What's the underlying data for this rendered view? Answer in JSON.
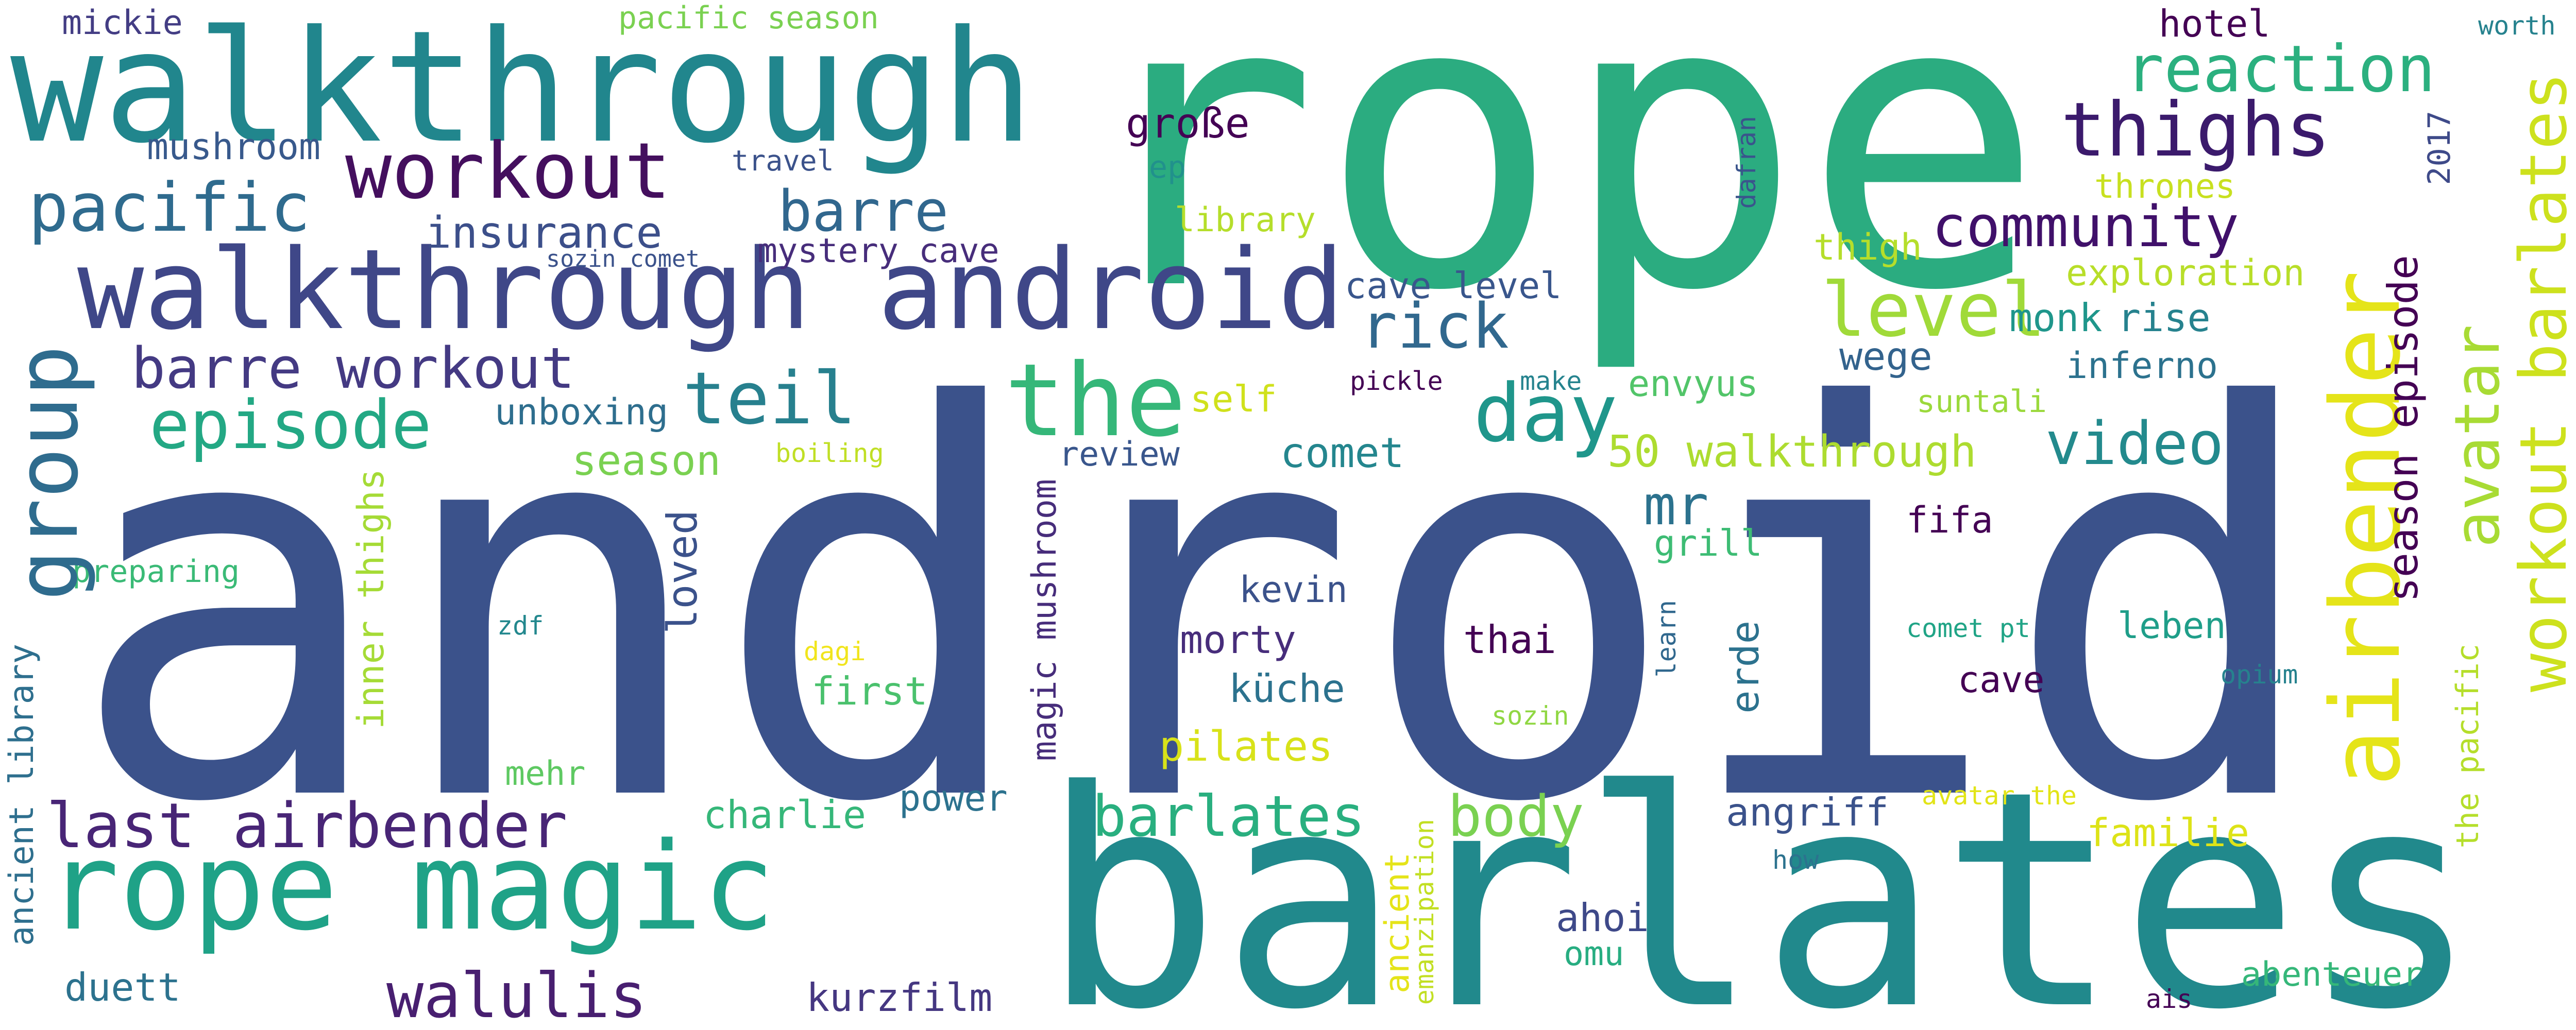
{
  "words": [
    {
      "text": "android",
      "color": "#3b528b",
      "orientation": "horizontal"
    },
    {
      "text": "rope",
      "color": "#2bac80",
      "orientation": "horizontal"
    },
    {
      "text": "barlates",
      "color": "#21898c",
      "orientation": "horizontal"
    },
    {
      "text": "walkthrough",
      "color": "#21868d",
      "orientation": "horizontal"
    },
    {
      "text": "walkthrough android",
      "color": "#3f4788",
      "orientation": "horizontal"
    },
    {
      "text": "rope magic",
      "color": "#1fa287",
      "orientation": "horizontal"
    },
    {
      "text": "workout",
      "color": "#440f5e",
      "orientation": "horizontal"
    },
    {
      "text": "pacific",
      "color": "#2f6b8e",
      "orientation": "horizontal"
    },
    {
      "text": "reaction",
      "color": "#2bb07f",
      "orientation": "horizontal"
    },
    {
      "text": "thighs",
      "color": "#3b1a6c",
      "orientation": "horizontal"
    },
    {
      "text": "community",
      "color": "#40106a",
      "orientation": "horizontal"
    },
    {
      "text": "the",
      "color": "#35b779",
      "orientation": "horizontal"
    },
    {
      "text": "level",
      "color": "#a0da39",
      "orientation": "horizontal"
    },
    {
      "text": "rick",
      "color": "#31688e",
      "orientation": "horizontal"
    },
    {
      "text": "day",
      "color": "#1f968b",
      "orientation": "horizontal"
    },
    {
      "text": "teil",
      "color": "#27808e",
      "orientation": "horizontal"
    },
    {
      "text": "episode",
      "color": "#23a884",
      "orientation": "horizontal"
    },
    {
      "text": "barre workout",
      "color": "#443a83",
      "orientation": "horizontal"
    },
    {
      "text": "barre",
      "color": "#31678e",
      "orientation": "horizontal"
    },
    {
      "text": "insurance",
      "color": "#3c4f8a",
      "orientation": "horizontal"
    },
    {
      "text": "mystery cave",
      "color": "#472d7b",
      "orientation": "horizontal"
    },
    {
      "text": "sozin comet",
      "color": "#3b528b",
      "orientation": "horizontal"
    },
    {
      "text": "mushroom",
      "color": "#38598c",
      "orientation": "horizontal"
    },
    {
      "text": "mickie",
      "color": "#433d84",
      "orientation": "horizontal"
    },
    {
      "text": "pacific season",
      "color": "#7ad151",
      "orientation": "horizontal"
    },
    {
      "text": "travel",
      "color": "#3b528b",
      "orientation": "horizontal"
    },
    {
      "text": "große",
      "color": "#440154",
      "orientation": "horizontal"
    },
    {
      "text": "ep",
      "color": "#21918c",
      "orientation": "horizontal"
    },
    {
      "text": "library",
      "color": "#b5de2b",
      "orientation": "horizontal"
    },
    {
      "text": "cave level",
      "color": "#39568c",
      "orientation": "horizontal"
    },
    {
      "text": "hotel",
      "color": "#440154",
      "orientation": "horizontal"
    },
    {
      "text": "worth",
      "color": "#26828e",
      "orientation": "horizontal"
    },
    {
      "text": "thrones",
      "color": "#c8e020",
      "orientation": "horizontal"
    },
    {
      "text": "thigh",
      "color": "#b5de2b",
      "orientation": "horizontal"
    },
    {
      "text": "exploration",
      "color": "#b8de29",
      "orientation": "horizontal"
    },
    {
      "text": "monk",
      "color": "#1f968b",
      "orientation": "horizontal"
    },
    {
      "text": "rise",
      "color": "#26828e",
      "orientation": "horizontal"
    },
    {
      "text": "inferno",
      "color": "#2c728e",
      "orientation": "horizontal"
    },
    {
      "text": "wege",
      "color": "#33638d",
      "orientation": "horizontal"
    },
    {
      "text": "suntali",
      "color": "#9bd93c",
      "orientation": "horizontal"
    },
    {
      "text": "envyus",
      "color": "#52c569",
      "orientation": "horizontal"
    },
    {
      "text": "video",
      "color": "#238a8d",
      "orientation": "horizontal"
    },
    {
      "text": "50 walkthrough",
      "color": "#addc30",
      "orientation": "horizontal"
    },
    {
      "text": "self",
      "color": "#d0e11c",
      "orientation": "horizontal"
    },
    {
      "text": "make",
      "color": "#25838e",
      "orientation": "horizontal"
    },
    {
      "text": "pickle",
      "color": "#440154",
      "orientation": "horizontal"
    },
    {
      "text": "review",
      "color": "#39568c",
      "orientation": "horizontal"
    },
    {
      "text": "comet",
      "color": "#24868e",
      "orientation": "horizontal"
    },
    {
      "text": "mr",
      "color": "#2c728e",
      "orientation": "horizontal"
    },
    {
      "text": "grill",
      "color": "#3dbc74",
      "orientation": "horizontal"
    },
    {
      "text": "fifa",
      "color": "#440154",
      "orientation": "horizontal"
    },
    {
      "text": "unboxing",
      "color": "#2e6e8e",
      "orientation": "horizontal"
    },
    {
      "text": "boiling",
      "color": "#c0df25",
      "orientation": "horizontal"
    },
    {
      "text": "season",
      "color": "#7ad151",
      "orientation": "horizontal"
    },
    {
      "text": "preparing",
      "color": "#3aba76",
      "orientation": "horizontal"
    },
    {
      "text": "kevin",
      "color": "#3b528b",
      "orientation": "horizontal"
    },
    {
      "text": "morty",
      "color": "#472d7b",
      "orientation": "horizontal"
    },
    {
      "text": "thai",
      "color": "#440154",
      "orientation": "horizontal"
    },
    {
      "text": "küche",
      "color": "#2c728e",
      "orientation": "horizontal"
    },
    {
      "text": "zdf",
      "color": "#23888e",
      "orientation": "horizontal"
    },
    {
      "text": "dagi",
      "color": "#f1e51d",
      "orientation": "horizontal"
    },
    {
      "text": "first",
      "color": "#4ac16d",
      "orientation": "horizontal"
    },
    {
      "text": "mehr",
      "color": "#5ec962",
      "orientation": "horizontal"
    },
    {
      "text": "pilates",
      "color": "#d8e219",
      "orientation": "horizontal"
    },
    {
      "text": "comet pt",
      "color": "#20a486",
      "orientation": "horizontal"
    },
    {
      "text": "leben",
      "color": "#1f9e89",
      "orientation": "horizontal"
    },
    {
      "text": "cave",
      "color": "#440154",
      "orientation": "horizontal"
    },
    {
      "text": "opium",
      "color": "#26828e",
      "orientation": "horizontal"
    },
    {
      "text": "sozin",
      "color": "#90d743",
      "orientation": "horizontal"
    },
    {
      "text": "last airbender",
      "color": "#482576",
      "orientation": "horizontal"
    },
    {
      "text": "charlie",
      "color": "#35b779",
      "orientation": "horizontal"
    },
    {
      "text": "power",
      "color": "#2c728e",
      "orientation": "horizontal"
    },
    {
      "text": "barlates",
      "color": "#29af7f",
      "orientation": "horizontal"
    },
    {
      "text": "body",
      "color": "#7ad151",
      "orientation": "horizontal"
    },
    {
      "text": "angriff",
      "color": "#3b528b",
      "orientation": "horizontal"
    },
    {
      "text": "avatar the",
      "color": "#e2e418",
      "orientation": "horizontal"
    },
    {
      "text": "familie",
      "color": "#dde318",
      "orientation": "horizontal"
    },
    {
      "text": "how",
      "color": "#2c728e",
      "orientation": "horizontal"
    },
    {
      "text": "ahoi",
      "color": "#3e4989",
      "orientation": "horizontal"
    },
    {
      "text": "omu",
      "color": "#27ad81",
      "orientation": "horizontal"
    },
    {
      "text": "walulis",
      "color": "#481f70",
      "orientation": "horizontal"
    },
    {
      "text": "kurzfilm",
      "color": "#453781",
      "orientation": "horizontal"
    },
    {
      "text": "duett",
      "color": "#2c728e",
      "orientation": "horizontal"
    },
    {
      "text": "abenteuer",
      "color": "#35b779",
      "orientation": "horizontal"
    },
    {
      "text": "ais",
      "color": "#440154",
      "orientation": "horizontal"
    },
    {
      "text": "group",
      "color": "#2f6c8e",
      "orientation": "vertical"
    },
    {
      "text": "ancient library",
      "color": "#2e6f8e",
      "orientation": "vertical"
    },
    {
      "text": "inner thighs",
      "color": "#a5db36",
      "orientation": "vertical"
    },
    {
      "text": "loved",
      "color": "#3b528b",
      "orientation": "vertical"
    },
    {
      "text": "magic mushroom",
      "color": "#472d7b",
      "orientation": "vertical"
    },
    {
      "text": "dafran",
      "color": "#3a548c",
      "orientation": "vertical"
    },
    {
      "text": "erde",
      "color": "#2c728e",
      "orientation": "vertical"
    },
    {
      "text": "learn",
      "color": "#31688e",
      "orientation": "vertical"
    },
    {
      "text": "ancient",
      "color": "#e5e419",
      "orientation": "vertical"
    },
    {
      "text": "emanzipation",
      "color": "#c2df23",
      "orientation": "vertical"
    },
    {
      "text": "airbender",
      "color": "#e5e419",
      "orientation": "vertical"
    },
    {
      "text": "avatar",
      "color": "#a8db34",
      "orientation": "vertical"
    },
    {
      "text": "season episode",
      "color": "#440154",
      "orientation": "vertical"
    },
    {
      "text": "2017",
      "color": "#3e4a89",
      "orientation": "vertical"
    },
    {
      "text": "workout barlates",
      "color": "#cde11d",
      "orientation": "vertical"
    },
    {
      "text": "the pacific",
      "color": "#b5de2b",
      "orientation": "vertical"
    }
  ]
}
